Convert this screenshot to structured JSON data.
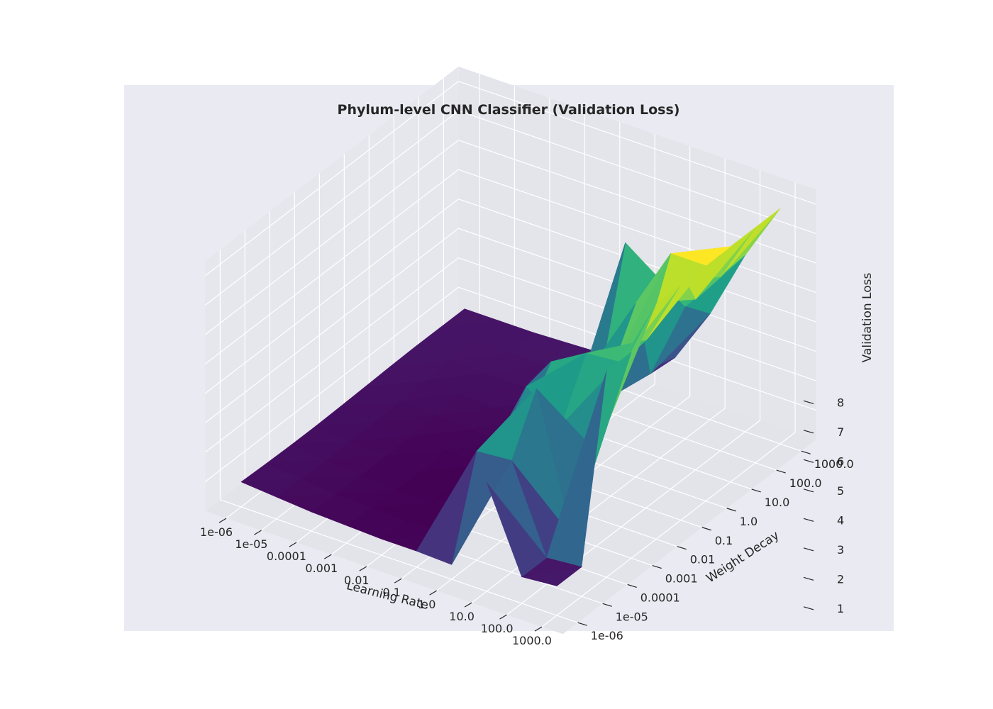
{
  "chart_data": {
    "type": "surface3d",
    "title": "Phylum-level CNN Classifier (Validation Loss)",
    "xlabel": "Learning Rate",
    "ylabel": "Weight Decay",
    "zlabel": "Validation Loss",
    "x_ticks": [
      "1e-06",
      "1e-05",
      "0.0001",
      "0.001",
      "0.01",
      "0.1",
      "1.0",
      "10.0",
      "100.0",
      "1000.0"
    ],
    "y_ticks": [
      "1e-06",
      "1e-05",
      "0.0001",
      "0.001",
      "0.01",
      "0.1",
      "1.0",
      "10.0",
      "100.0",
      "1000.0"
    ],
    "z_ticks": [
      "1",
      "2",
      "3",
      "4",
      "5",
      "6",
      "7",
      "8"
    ],
    "zlim": [
      0,
      8.5
    ],
    "colormap": "viridis",
    "grid": true,
    "z_values": [
      [
        0.85,
        0.82,
        0.8,
        0.8,
        0.82,
        0.85,
        0.88,
        0.9,
        0.9,
        0.9
      ],
      [
        0.75,
        0.72,
        0.7,
        0.7,
        0.72,
        0.75,
        0.8,
        0.85,
        0.88,
        0.9
      ],
      [
        0.65,
        0.62,
        0.6,
        0.6,
        0.62,
        0.68,
        0.75,
        0.82,
        0.88,
        0.9
      ],
      [
        0.6,
        0.55,
        0.52,
        0.5,
        0.55,
        0.62,
        0.7,
        0.8,
        0.88,
        0.95
      ],
      [
        0.55,
        0.5,
        0.48,
        0.48,
        0.5,
        0.58,
        0.68,
        0.78,
        0.9,
        1.0
      ],
      [
        0.55,
        0.52,
        0.5,
        0.5,
        0.55,
        0.65,
        0.75,
        0.85,
        0.95,
        1.0
      ],
      [
        0.5,
        3.7,
        3.7,
        4.6,
        4.8,
        3.2,
        3.0,
        6.9,
        1.8,
        1.7
      ],
      [
        3.7,
        3.8,
        5.6,
        3.7,
        5.5,
        4.2,
        5.9,
        6.0,
        4.5,
        3.6
      ],
      [
        0.9,
        0.9,
        1.0,
        3.2,
        5.6,
        5.7,
        8.0,
        5.8,
        5.9,
        6.0
      ],
      [
        1.0,
        1.0,
        7.0,
        7.0,
        8.0,
        8.0,
        8.0,
        8.0,
        8.0,
        8.0
      ]
    ]
  }
}
